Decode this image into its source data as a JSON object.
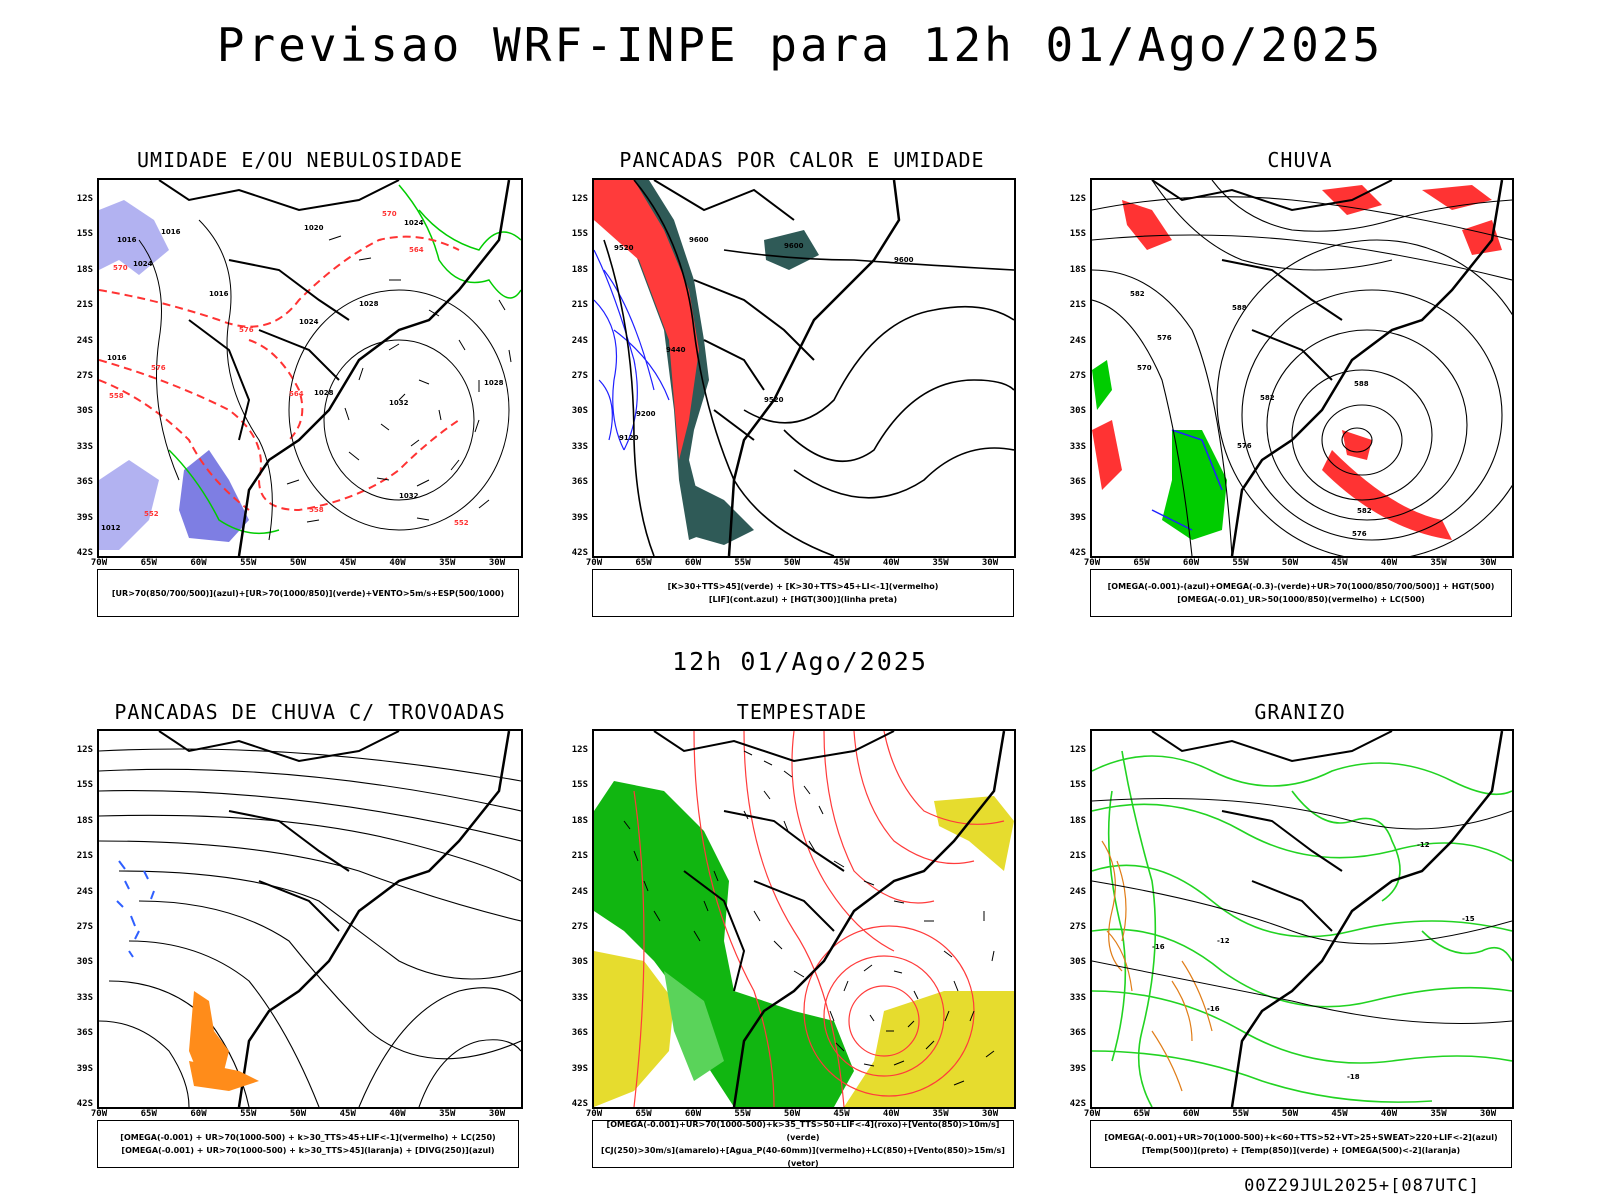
{
  "title": "Previsao WRF-INPE  para 12h 01/Ago/2025",
  "middle_time": "12h 01/Ago/2025",
  "footer": "00Z29JUL2025+[087UTC]",
  "lat_labels": [
    "12S",
    "15S",
    "18S",
    "21S",
    "24S",
    "27S",
    "30S",
    "33S",
    "36S",
    "39S",
    "42S"
  ],
  "lon_labels": [
    "70W",
    "65W",
    "60W",
    "55W",
    "50W",
    "45W",
    "40W",
    "35W",
    "30W"
  ],
  "panels": [
    {
      "title": "UMIDADE E/OU NEBULOSIDADE",
      "legend": [
        "[UR>70(850/700/500)](azul)+[UR>70(1000/850)](verde)+VENTO>5m/s+ESP(500/1000)"
      ]
    },
    {
      "title": "PANCADAS POR CALOR E UMIDADE",
      "legend": [
        "[K>30+TTS>45](verde) + [K>30+TTS>45+LI<-1](vermelho)",
        "[LIF](cont.azul) + [HGT(300)](linha preta)"
      ]
    },
    {
      "title": "CHUVA",
      "legend": [
        "[OMEGA(-0.001)-(azul)+OMEGA(-0.3)-(verde)+UR>70(1000/850/700/500)] + HGT(500)",
        "[OMEGA(-0.01)_UR>50(1000/850)(vermelho) + LC(500)"
      ]
    },
    {
      "title": "PANCADAS DE CHUVA C/ TROVOADAS",
      "legend": [
        "[OMEGA(-0.001) + UR>70(1000-500) + k>30_TTS>45+LIF<-1](vermelho) + LC(250)",
        "[OMEGA(-0.001) + UR>70(1000-500) + k>30_TTS>45](laranja) + [DIVG(250)](azul)"
      ]
    },
    {
      "title": "TEMPESTADE",
      "legend": [
        "[OMEGA(-0.001)+UR>70(1000-500)+k>35_TTS>50+LIF<-4](roxo)+[Vento(850)>10m/s](verde)",
        "[CJ(250)>30m/s](amarelo)+[Agua_P(40-60mm)](vermelho)+LC(850)+[Vento(850)>15m/s](vetor)"
      ]
    },
    {
      "title": "GRANIZO",
      "legend": [
        "[OMEGA(-0.001)+UR>70(1000-500)+k<60+TTS>52+VT>25+SWEAT>220+LIF<-2](azul)",
        "[Temp(500)](preto) + [Temp(850)](verde) + [OMEGA(500)<-2](laranja)"
      ]
    }
  ],
  "contour_labels": {
    "p1": [
      "1016",
      "1016",
      "1024",
      "1016",
      "1024",
      "1020",
      "1024",
      "1028",
      "1028",
      "1032",
      "1032",
      "1028",
      "1016",
      "1012",
      "570",
      "564",
      "576",
      "570",
      "576",
      "558",
      "552",
      "564",
      "558",
      "552"
    ],
    "p2": [
      "9600",
      "9600",
      "9600",
      "9520",
      "9440",
      "9520",
      "9200",
      "9120"
    ],
    "p3": [
      "582",
      "588",
      "576",
      "570",
      "582",
      "576",
      "588",
      "582",
      "576"
    ],
    "p6": [
      "-12",
      "-16",
      "-12",
      "-15",
      "-16",
      "-18"
    ]
  }
}
